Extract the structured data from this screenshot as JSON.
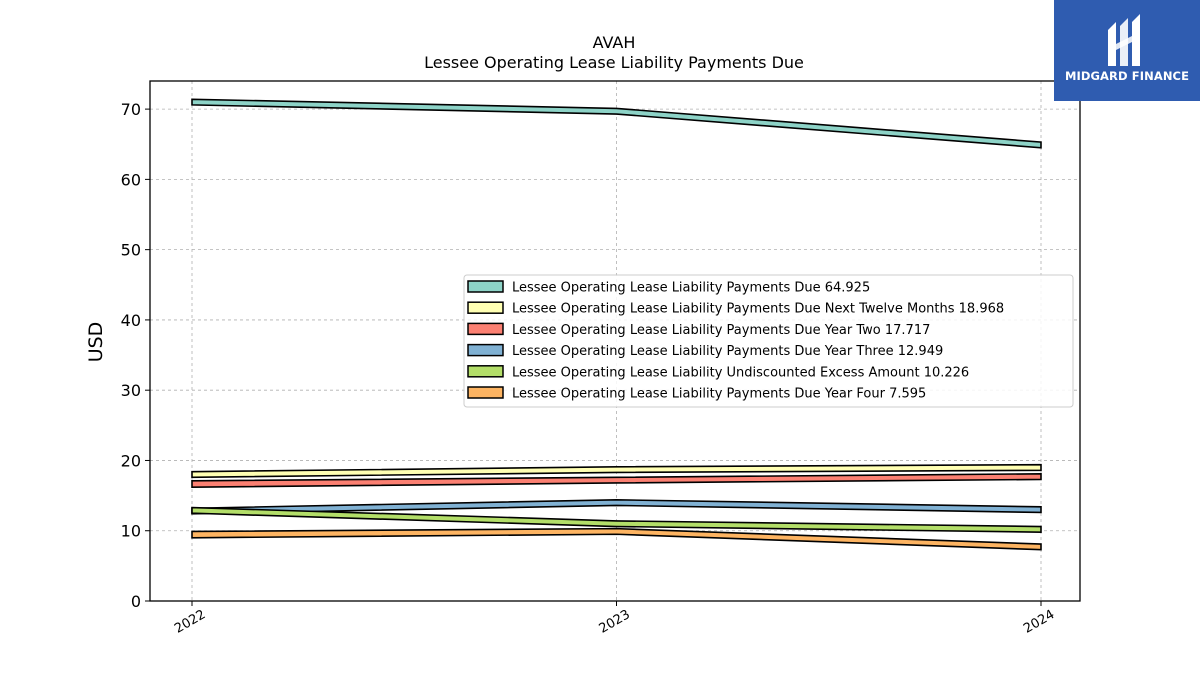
{
  "chart_data": {
    "type": "area",
    "title": "AVAH",
    "subtitle": "Lessee Operating Lease Liability Payments Due",
    "xlabel": "",
    "ylabel": "USD",
    "categories": [
      "2022",
      "2023",
      "2024"
    ],
    "ylim": [
      0,
      74
    ],
    "yticks": [
      0,
      10,
      20,
      30,
      40,
      50,
      60,
      70
    ],
    "grid": true,
    "legend_position": "center-right",
    "series": [
      {
        "name": "Lessee Operating Lease Liability Payments Due",
        "legend_value": "64.925",
        "color": "#8dd3c7",
        "values": [
          [
            70.6,
            71.4
          ],
          [
            69.3,
            70.1
          ],
          [
            64.5,
            65.3
          ]
        ]
      },
      {
        "name": "Lessee Operating Lease Liability Payments Due Next Twelve Months",
        "legend_value": "18.968",
        "color": "#ffffb3",
        "values": [
          [
            17.6,
            18.4
          ],
          [
            18.3,
            19.1
          ],
          [
            18.6,
            19.4
          ]
        ]
      },
      {
        "name": "Lessee Operating Lease Liability Payments Due Year Two",
        "legend_value": "17.717",
        "color": "#fb8072",
        "values": [
          [
            16.2,
            17.1
          ],
          [
            16.8,
            17.6
          ],
          [
            17.3,
            18.1
          ]
        ]
      },
      {
        "name": "Lessee Operating Lease Liability Payments Due Year Three",
        "legend_value": "12.949",
        "color": "#80b1d3",
        "values": [
          [
            12.4,
            13.2
          ],
          [
            13.6,
            14.4
          ],
          [
            12.6,
            13.4
          ]
        ]
      },
      {
        "name": "Lessee Operating Lease Liability Undiscounted Excess Amount",
        "legend_value": "10.226",
        "color": "#b3de69",
        "values": [
          [
            12.5,
            13.3
          ],
          [
            10.6,
            11.4
          ],
          [
            9.8,
            10.6
          ]
        ]
      },
      {
        "name": "Lessee Operating Lease Liability Payments Due Year Four",
        "legend_value": "7.595",
        "color": "#fdb462",
        "values": [
          [
            9.0,
            9.9
          ],
          [
            9.5,
            10.3
          ],
          [
            7.3,
            8.1
          ]
        ]
      }
    ]
  },
  "logo": {
    "text": "MIDGARD FINANCE",
    "background": "#2f5cb0"
  }
}
